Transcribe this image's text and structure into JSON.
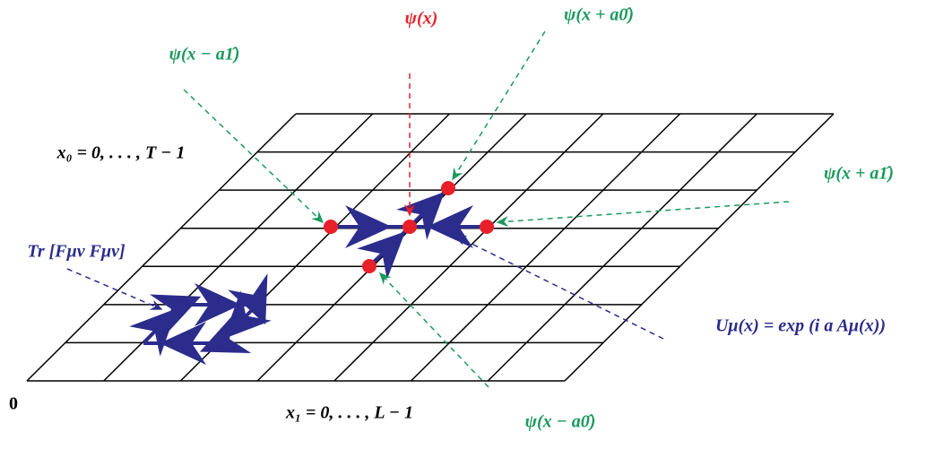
{
  "labels": {
    "psi_x": "ψ(x)",
    "psi_x_plus_a0": "ψ(x + a0̂)",
    "psi_x_minus_a1": "ψ(x − a1̂)",
    "psi_x_plus_a1": "ψ(x + a1̂)",
    "psi_x_minus_a0": "ψ(x − a0̂)",
    "x0_range": "x₀ = 0, . . . , T − 1",
    "x1_range": "x₁ = 0, . . . , L − 1",
    "origin": "0",
    "plaquette": "Tr [Fμν Fμν]",
    "link": "Uμ(x) = exp (i a Aμ(x))"
  }
}
